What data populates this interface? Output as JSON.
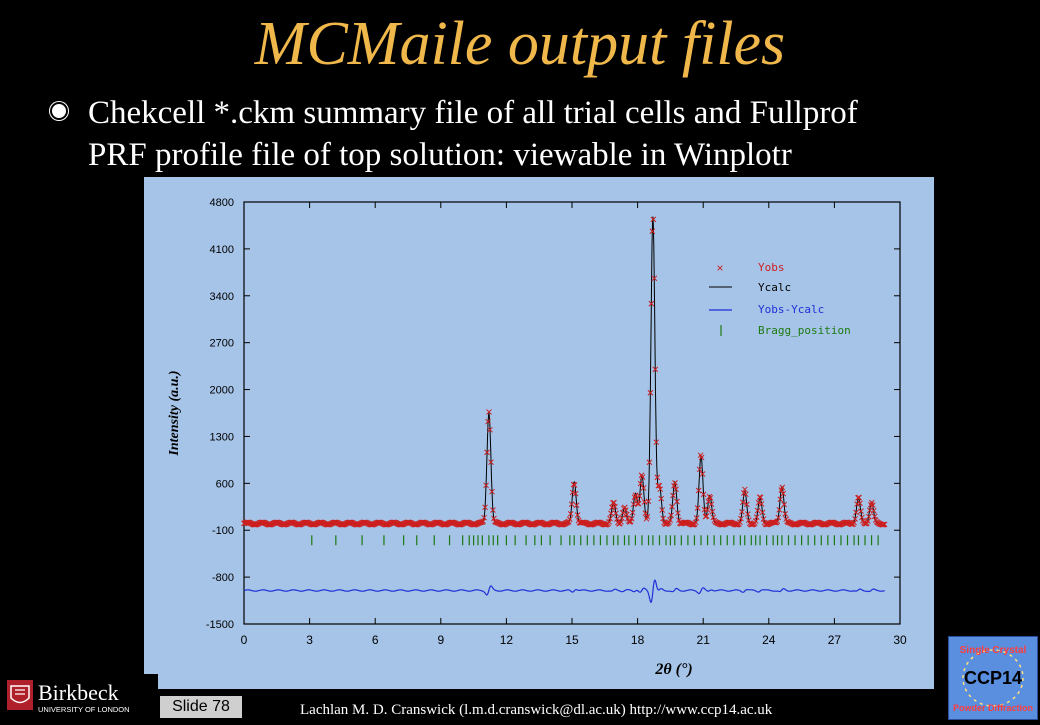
{
  "slide": {
    "title": "MCMaile output files",
    "bullet_line1": "Chekcell *.ckm summary file of all trial cells and Fullprof",
    "bullet_line2": "PRF profile file of top solution: viewable in Winplotr",
    "slide_number_label": "Slide 78",
    "footer_credit": "Lachlan M. D. Cranswick (l.m.d.cranswick@dl.ac.uk) http://www.ccp14.ac.uk",
    "left_logo": {
      "name": "Birkbeck",
      "subtitle": "UNIVERSITY OF LONDON"
    },
    "right_logo": {
      "line1": "Single Crystal",
      "line2": "CCP14",
      "line3": "Powder Diffraction"
    }
  },
  "colors": {
    "background": "#000000",
    "title": "#f0b84a",
    "plot_background": "#a6c4e8",
    "yobs": "#cc1f1f",
    "ycalc": "#000000",
    "difference": "#1f2fd6",
    "bragg": "#1c7a10"
  },
  "chart_data": {
    "type": "line",
    "xlabel": "2θ (°)",
    "ylabel": "Intensity (a.u.)",
    "xlim": [
      0,
      30
    ],
    "ylim": [
      -1500,
      4800
    ],
    "x_ticks": [
      "0",
      "3",
      "6",
      "9",
      "12",
      "15",
      "18",
      "21",
      "24",
      "27",
      "30"
    ],
    "y_ticks": [
      "4800",
      "4100",
      "3400",
      "2700",
      "2000",
      "1300",
      "600",
      "-100",
      "-800",
      "-1500"
    ],
    "legend_position": "top-right",
    "legend": [
      {
        "label": "Yobs",
        "marker": "x"
      },
      {
        "label": "Ycalc",
        "marker": "line"
      },
      {
        "label": "Yobs-Ycalc",
        "marker": "line"
      },
      {
        "label": "Bragg_position",
        "marker": "tick"
      }
    ],
    "baseline": 0,
    "difference_offset": -1000,
    "bragg_y": -250,
    "x_range": [
      0,
      29.3
    ],
    "peaks": [
      {
        "x": 11.2,
        "y": 1650
      },
      {
        "x": 15.1,
        "y": 620
      },
      {
        "x": 16.9,
        "y": 310
      },
      {
        "x": 17.4,
        "y": 230
      },
      {
        "x": 17.9,
        "y": 450
      },
      {
        "x": 18.2,
        "y": 720
      },
      {
        "x": 18.7,
        "y": 4580
      },
      {
        "x": 19.0,
        "y": 550
      },
      {
        "x": 19.7,
        "y": 620
      },
      {
        "x": 20.9,
        "y": 1000
      },
      {
        "x": 21.3,
        "y": 420
      },
      {
        "x": 22.9,
        "y": 480
      },
      {
        "x": 23.6,
        "y": 380
      },
      {
        "x": 24.6,
        "y": 550
      },
      {
        "x": 28.1,
        "y": 380
      },
      {
        "x": 28.7,
        "y": 320
      }
    ],
    "bragg_positions": [
      3.1,
      4.2,
      5.4,
      6.4,
      7.3,
      7.9,
      8.7,
      9.4,
      10.0,
      10.3,
      10.5,
      10.7,
      10.9,
      11.2,
      11.4,
      11.6,
      12.0,
      12.4,
      12.9,
      13.3,
      13.6,
      14.0,
      14.5,
      14.9,
      15.1,
      15.4,
      15.7,
      16.0,
      16.3,
      16.6,
      16.9,
      17.1,
      17.4,
      17.6,
      17.9,
      18.2,
      18.5,
      18.7,
      19.0,
      19.3,
      19.5,
      19.7,
      20.0,
      20.3,
      20.6,
      20.9,
      21.2,
      21.5,
      21.8,
      22.1,
      22.4,
      22.7,
      22.9,
      23.2,
      23.4,
      23.6,
      23.9,
      24.2,
      24.4,
      24.6,
      24.9,
      25.2,
      25.5,
      25.8,
      26.1,
      26.4,
      26.7,
      27.0,
      27.3,
      27.6,
      27.9,
      28.1,
      28.4,
      28.7,
      29.0
    ]
  }
}
